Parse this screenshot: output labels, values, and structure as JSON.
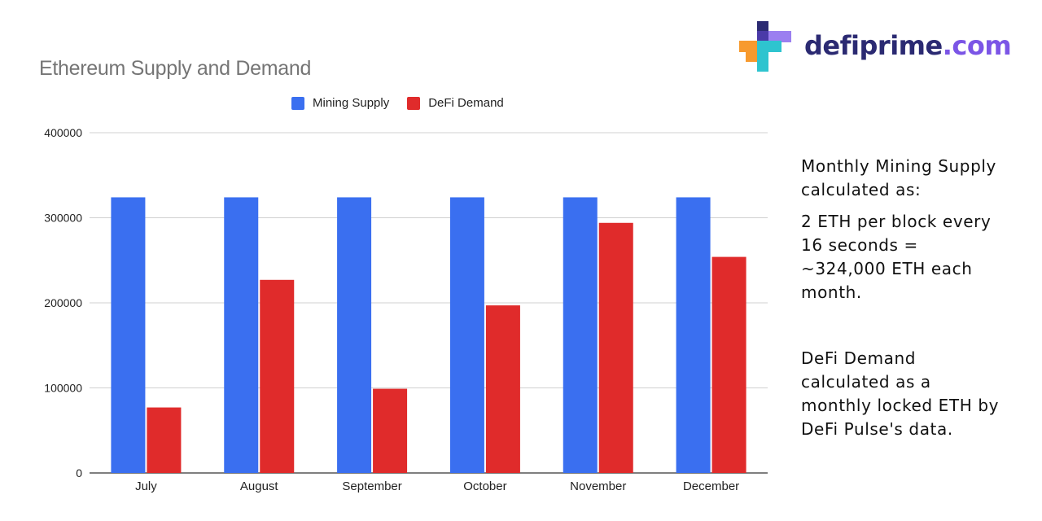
{
  "logo": {
    "name": "defiprime.com",
    "text_main": "defiprime",
    "text_accent": ".com",
    "colors": {
      "navy": "#2b2a72",
      "purple": "#7b55e6",
      "orange": "#f79a2e",
      "teal": "#2ec4cf"
    }
  },
  "notes": {
    "p1": "Monthly Mining Supply\ncalculated as:",
    "p2": "2 ETH per block every\n16 seconds =\n~324,000 ETH each\nmonth.",
    "p3": "DeFi Demand\ncalculated as a\nmonthly locked ETH by\nDeFi Pulse's data."
  },
  "chart_data": {
    "type": "bar",
    "title": "Ethereum Supply and Demand",
    "xlabel": "",
    "ylabel": "",
    "categories": [
      "July",
      "August",
      "September",
      "October",
      "November",
      "December"
    ],
    "series": [
      {
        "name": "Mining Supply",
        "color": "#3a6ff0",
        "values": [
          324000,
          324000,
          324000,
          324000,
          324000,
          324000
        ]
      },
      {
        "name": "DeFi Demand",
        "color": "#e02b2b",
        "values": [
          77000,
          227000,
          99000,
          197000,
          294000,
          254000
        ]
      }
    ],
    "ylim": [
      0,
      400000
    ],
    "yticks": [
      "0",
      "100000",
      "200000",
      "300000",
      "400000"
    ],
    "grid": true,
    "legend_position": "top"
  }
}
